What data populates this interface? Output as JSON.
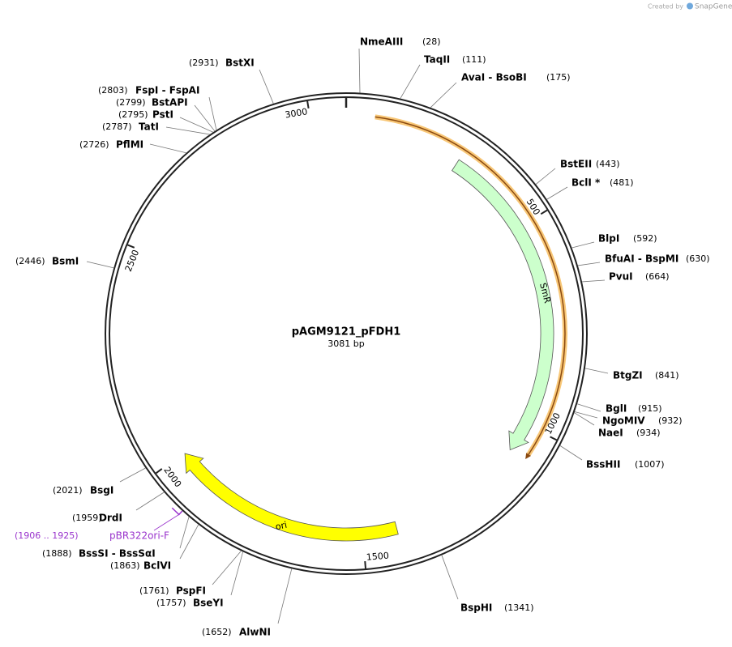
{
  "brand": {
    "prefix": "Created by",
    "name": "SnapGene"
  },
  "plasmid": {
    "name": "pAGM9121_pFDH1",
    "length": {
      "value": 3081,
      "label": "3081 bp"
    }
  },
  "ticks": [
    500,
    1000,
    1500,
    2000,
    2500,
    3000
  ],
  "features": [
    {
      "name": "SmR",
      "start": 282,
      "end": 1073,
      "color": "#ccffcc",
      "stroke": "#555555"
    },
    {
      "name": "ori",
      "start": 1416,
      "end": 1997,
      "color": "#ffff00",
      "stroke": "#555555"
    },
    {
      "start": 65,
      "end": 1070,
      "color": "#f8c777",
      "stroke": "#8b4a10"
    }
  ],
  "primer": {
    "name": "pBR322ori-F",
    "start": 1906,
    "end": 1925,
    "label": "(1906 .. 1925)",
    "color": "#9933cc"
  },
  "sites": [
    {
      "name": "NmeAIII",
      "position": {
        "value": 28,
        "label": "(28)"
      }
    },
    {
      "name": "TaqII",
      "position": {
        "value": 111,
        "label": "(111)"
      }
    },
    {
      "name": "AvaI  - BsoBI",
      "position": {
        "value": 175,
        "label": "(175)"
      }
    },
    {
      "name": "BstEII",
      "position": {
        "value": 443,
        "label": "(443)"
      }
    },
    {
      "name": "BclI *",
      "position": {
        "value": 481,
        "label": "(481)"
      }
    },
    {
      "name": "BlpI",
      "position": {
        "value": 592,
        "label": "(592)"
      }
    },
    {
      "name": "BfuAI  - BspMI",
      "position": {
        "value": 630,
        "label": "(630)"
      }
    },
    {
      "name": "PvuI",
      "position": {
        "value": 664,
        "label": "(664)"
      }
    },
    {
      "name": "BtgZI",
      "position": {
        "value": 841,
        "label": "(841)"
      }
    },
    {
      "name": "BglI",
      "position": {
        "value": 915,
        "label": "(915)"
      }
    },
    {
      "name": "NgoMIV",
      "position": {
        "value": 932,
        "label": "(932)"
      }
    },
    {
      "name": "NaeI",
      "position": {
        "value": 934,
        "label": "(934)"
      }
    },
    {
      "name": "BssHII",
      "position": {
        "value": 1007,
        "label": "(1007)"
      }
    },
    {
      "name": "BspHI",
      "position": {
        "value": 1341,
        "label": "(1341)"
      }
    },
    {
      "name": "AlwNI",
      "position": {
        "value": 1652,
        "label": "(1652)"
      }
    },
    {
      "name": "BseYI",
      "position": {
        "value": 1757,
        "label": "(1757)"
      }
    },
    {
      "name": "PspFI",
      "position": {
        "value": 1761,
        "label": "(1761)"
      }
    },
    {
      "name": "BclVI",
      "position": {
        "value": 1863,
        "label": "(1863)"
      }
    },
    {
      "name": "BssSI  - BssSαI",
      "position": {
        "value": 1888,
        "label": "(1888)"
      }
    },
    {
      "name": "DrdI",
      "position": {
        "value": 1959,
        "label": "(1959)"
      }
    },
    {
      "name": "BsgI",
      "position": {
        "value": 2021,
        "label": "(2021)"
      }
    },
    {
      "name": "BsmI",
      "position": {
        "value": 2446,
        "label": "(2446)"
      }
    },
    {
      "name": "PflMI",
      "position": {
        "value": 2726,
        "label": "(2726)"
      }
    },
    {
      "name": "TatI",
      "position": {
        "value": 2787,
        "label": "(2787)"
      }
    },
    {
      "name": "PstI",
      "position": {
        "value": 2795,
        "label": "(2795)"
      }
    },
    {
      "name": "BstAPI",
      "position": {
        "value": 2799,
        "label": "(2799)"
      }
    },
    {
      "name": "FspI  - FspAI",
      "position": {
        "value": 2803,
        "label": "(2803)"
      }
    },
    {
      "name": "BstXI",
      "position": {
        "value": 2931,
        "label": "(2931)"
      }
    }
  ]
}
